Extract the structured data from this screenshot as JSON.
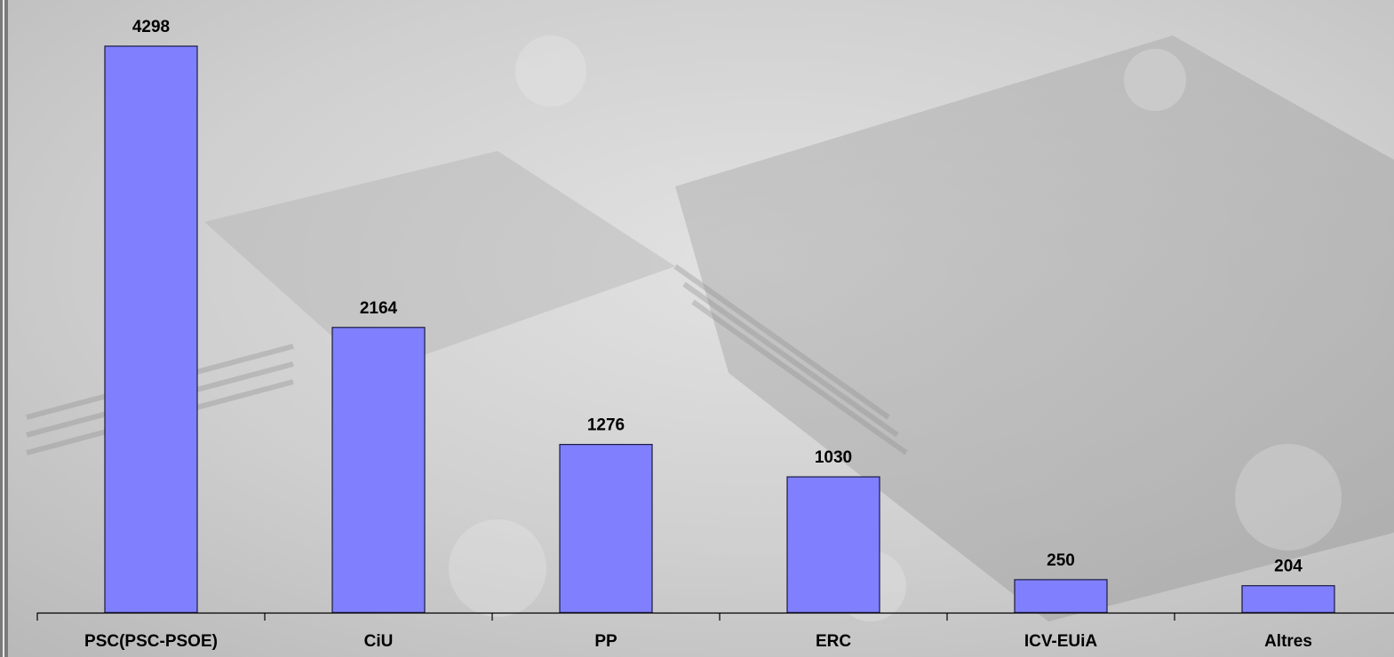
{
  "chart_data": {
    "type": "bar",
    "title": "",
    "xlabel": "",
    "ylabel": "",
    "categories": [
      "PSC(PSC-PSOE)",
      "CiU",
      "PP",
      "ERC",
      "ICV-EUiA",
      "Altres"
    ],
    "values": [
      4298,
      2164,
      1276,
      1030,
      250,
      204
    ],
    "ylim": [
      0,
      4500
    ],
    "grid": false,
    "legend": "none",
    "colors": {
      "bar_fill": "#8080ff",
      "bar_stroke": "#1a1a40",
      "background": "#c8c8c8"
    }
  }
}
